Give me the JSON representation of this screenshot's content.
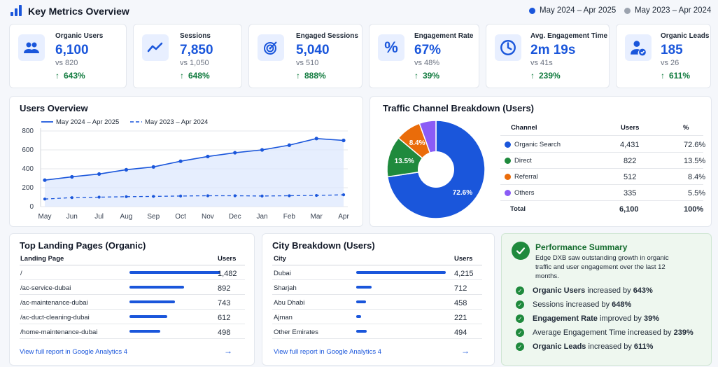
{
  "header": {
    "title": "Key Metrics Overview",
    "current_period": "May 2024 – Apr 2025",
    "previous_period": "May 2023 – Apr 2024",
    "current_color": "#1a56db",
    "previous_color": "#9ca3af"
  },
  "kpis": [
    {
      "label": "Organic Users",
      "value": "6,100",
      "prev": "vs 820",
      "change": "643%",
      "icon": "users-icon"
    },
    {
      "label": "Sessions",
      "value": "7,850",
      "prev": "vs 1,050",
      "change": "648%",
      "icon": "trend-icon"
    },
    {
      "label": "Engaged Sessions",
      "value": "5,040",
      "prev": "vs 510",
      "change": "888%",
      "icon": "target-icon"
    },
    {
      "label": "Engagement Rate",
      "value": "67%",
      "prev": "vs 48%",
      "change": "39%",
      "icon": "percent-icon"
    },
    {
      "label": "Avg. Engagement Time",
      "value": "2m 19s",
      "prev": "vs 41s",
      "change": "239%",
      "icon": "clock-icon"
    },
    {
      "label": "Organic Leads",
      "value": "185",
      "prev": "vs 26",
      "change": "611%",
      "icon": "user-check-icon"
    }
  ],
  "users_overview": {
    "title": "Users Overview",
    "legend_current": "May 2024 – Apr 2025",
    "legend_previous": "May 2023 – Apr 2024"
  },
  "traffic": {
    "title": "Traffic Channel Breakdown (Users)",
    "headers": {
      "channel": "Channel",
      "users": "Users",
      "pct": "%"
    },
    "rows": [
      {
        "channel": "Organic Search",
        "users": "4,431",
        "pct": "72.6%",
        "color": "#1a56db"
      },
      {
        "channel": "Direct",
        "users": "822",
        "pct": "13.5%",
        "color": "#1f8a3d"
      },
      {
        "channel": "Referral",
        "users": "512",
        "pct": "8.4%",
        "color": "#ea6c0a"
      },
      {
        "channel": "Others",
        "users": "335",
        "pct": "5.5%",
        "color": "#8b5cf6"
      }
    ],
    "total": {
      "label": "Total",
      "users": "6,100",
      "pct": "100%"
    }
  },
  "landing": {
    "title": "Top Landing Pages (Organic)",
    "col1": "Landing Page",
    "col2": "Users",
    "rows": [
      {
        "name": "/",
        "users": "1,482",
        "value": 1482
      },
      {
        "name": "/ac-service-dubai",
        "users": "892",
        "value": 892
      },
      {
        "name": "/ac-maintenance-dubai",
        "users": "743",
        "value": 743
      },
      {
        "name": "/ac-duct-cleaning-dubai",
        "users": "612",
        "value": 612
      },
      {
        "name": "/home-maintenance-dubai",
        "users": "498",
        "value": 498
      }
    ],
    "link": "View full report in Google Analytics 4"
  },
  "city": {
    "title": "City Breakdown (Users)",
    "col1": "City",
    "col2": "Users",
    "rows": [
      {
        "name": "Dubai",
        "users": "4,215",
        "value": 4215
      },
      {
        "name": "Sharjah",
        "users": "712",
        "value": 712
      },
      {
        "name": "Abu Dhabi",
        "users": "458",
        "value": 458
      },
      {
        "name": "Ajman",
        "users": "221",
        "value": 221
      },
      {
        "name": "Other Emirates",
        "users": "494",
        "value": 494
      }
    ],
    "link": "View full report in Google Analytics 4"
  },
  "summary": {
    "title": "Performance Summary",
    "desc": "Edge DXB saw outstanding growth in organic traffic and user engagement over the last 12 months.",
    "items": [
      {
        "bold": "Organic Users",
        "text": " increased by ",
        "val": "643%",
        "bold_lead": true
      },
      {
        "bold": "Sessions",
        "text": " increased by ",
        "val": "648%",
        "bold_lead": false
      },
      {
        "bold": "Engagement Rate",
        "text": " improved by ",
        "val": "39%",
        "bold_lead": true
      },
      {
        "bold": "Average Engagement Time",
        "text": " increased by ",
        "val": "239%",
        "bold_lead": false
      },
      {
        "bold": "Organic Leads",
        "text": " increased by ",
        "val": "611%",
        "bold_lead": true
      }
    ]
  },
  "chart_data": [
    {
      "type": "line",
      "title": "Users Overview",
      "categories": [
        "May",
        "Jun",
        "Jul",
        "Aug",
        "Sep",
        "Oct",
        "Nov",
        "Dec",
        "Jan",
        "Feb",
        "Mar",
        "Apr"
      ],
      "series": [
        {
          "name": "May 2024 – Apr 2025",
          "values": [
            280,
            315,
            345,
            390,
            420,
            480,
            530,
            570,
            600,
            650,
            720,
            700
          ],
          "color": "#1a56db",
          "style": "solid"
        },
        {
          "name": "May 2023 – Apr 2024",
          "values": [
            80,
            95,
            100,
            105,
            108,
            112,
            115,
            115,
            112,
            115,
            118,
            125
          ],
          "color": "#1a56db",
          "style": "dashed"
        }
      ],
      "yticks": [
        0,
        200,
        400,
        600,
        800
      ],
      "ylim": [
        0,
        800
      ],
      "grid": true,
      "legend": "top"
    },
    {
      "type": "pie",
      "title": "Traffic Channel Breakdown (Users)",
      "labels": [
        "Organic Search",
        "Direct",
        "Referral",
        "Others"
      ],
      "values": [
        72.6,
        13.5,
        8.4,
        5.5
      ],
      "slice_labels": [
        "72.6%",
        "13.5%",
        "8.4%",
        ""
      ],
      "colors": [
        "#1a56db",
        "#1f8a3d",
        "#ea6c0a",
        "#8b5cf6"
      ],
      "donut": true
    }
  ]
}
